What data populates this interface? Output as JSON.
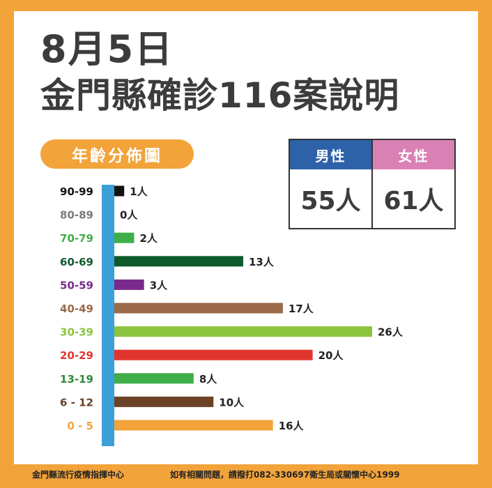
{
  "header": {
    "date": "8月5日",
    "title": "金門縣確診116案說明"
  },
  "badge": {
    "label": "年齡分佈圖"
  },
  "gender": {
    "male_label": "男性",
    "female_label": "女性",
    "male_value": "55人",
    "female_value": "61人",
    "male_color": "#2e62a8",
    "female_color": "#d981b4"
  },
  "colors": {
    "background": "#f2a33a",
    "axis": "#3aa0d6"
  },
  "chart_data": {
    "type": "bar",
    "orientation": "horizontal",
    "categories": [
      "90-99",
      "80-89",
      "70-79",
      "60-69",
      "50-59",
      "40-49",
      "30-39",
      "20-29",
      "13-19",
      "6-12",
      "0-5"
    ],
    "category_labels": [
      "90-99",
      "80-89",
      "70-79",
      "60-69",
      "50-59",
      "40-49",
      "30-39",
      "20-29",
      "13-19",
      "6 - 12",
      "0 - 5"
    ],
    "values": [
      1,
      0,
      2,
      13,
      3,
      17,
      26,
      20,
      8,
      10,
      16
    ],
    "value_labels": [
      "1人",
      "0人",
      "2人",
      "13人",
      "3人",
      "17人",
      "26人",
      "20人",
      "8人",
      "10人",
      "16人"
    ],
    "colors": [
      "#111111",
      "#7a7a7a",
      "#3fae49",
      "#0f5a2d",
      "#7a2a8c",
      "#9a6a4a",
      "#8cc43f",
      "#e0352e",
      "#3fae49",
      "#6b4226",
      "#f2a33a"
    ],
    "label_colors": [
      "#111111",
      "#7a7a7a",
      "#3fae49",
      "#0f5a2d",
      "#7a2a8c",
      "#9a6a4a",
      "#8cc43f",
      "#e0352e",
      "#2e8b3a",
      "#6b4226",
      "#f2a33a"
    ],
    "xlim": [
      0,
      26
    ]
  },
  "footer": {
    "left": "金門縣流行疫情指揮中心",
    "right": "如有相關問題，請撥打082-330697衛生局或關懷中心1999"
  }
}
